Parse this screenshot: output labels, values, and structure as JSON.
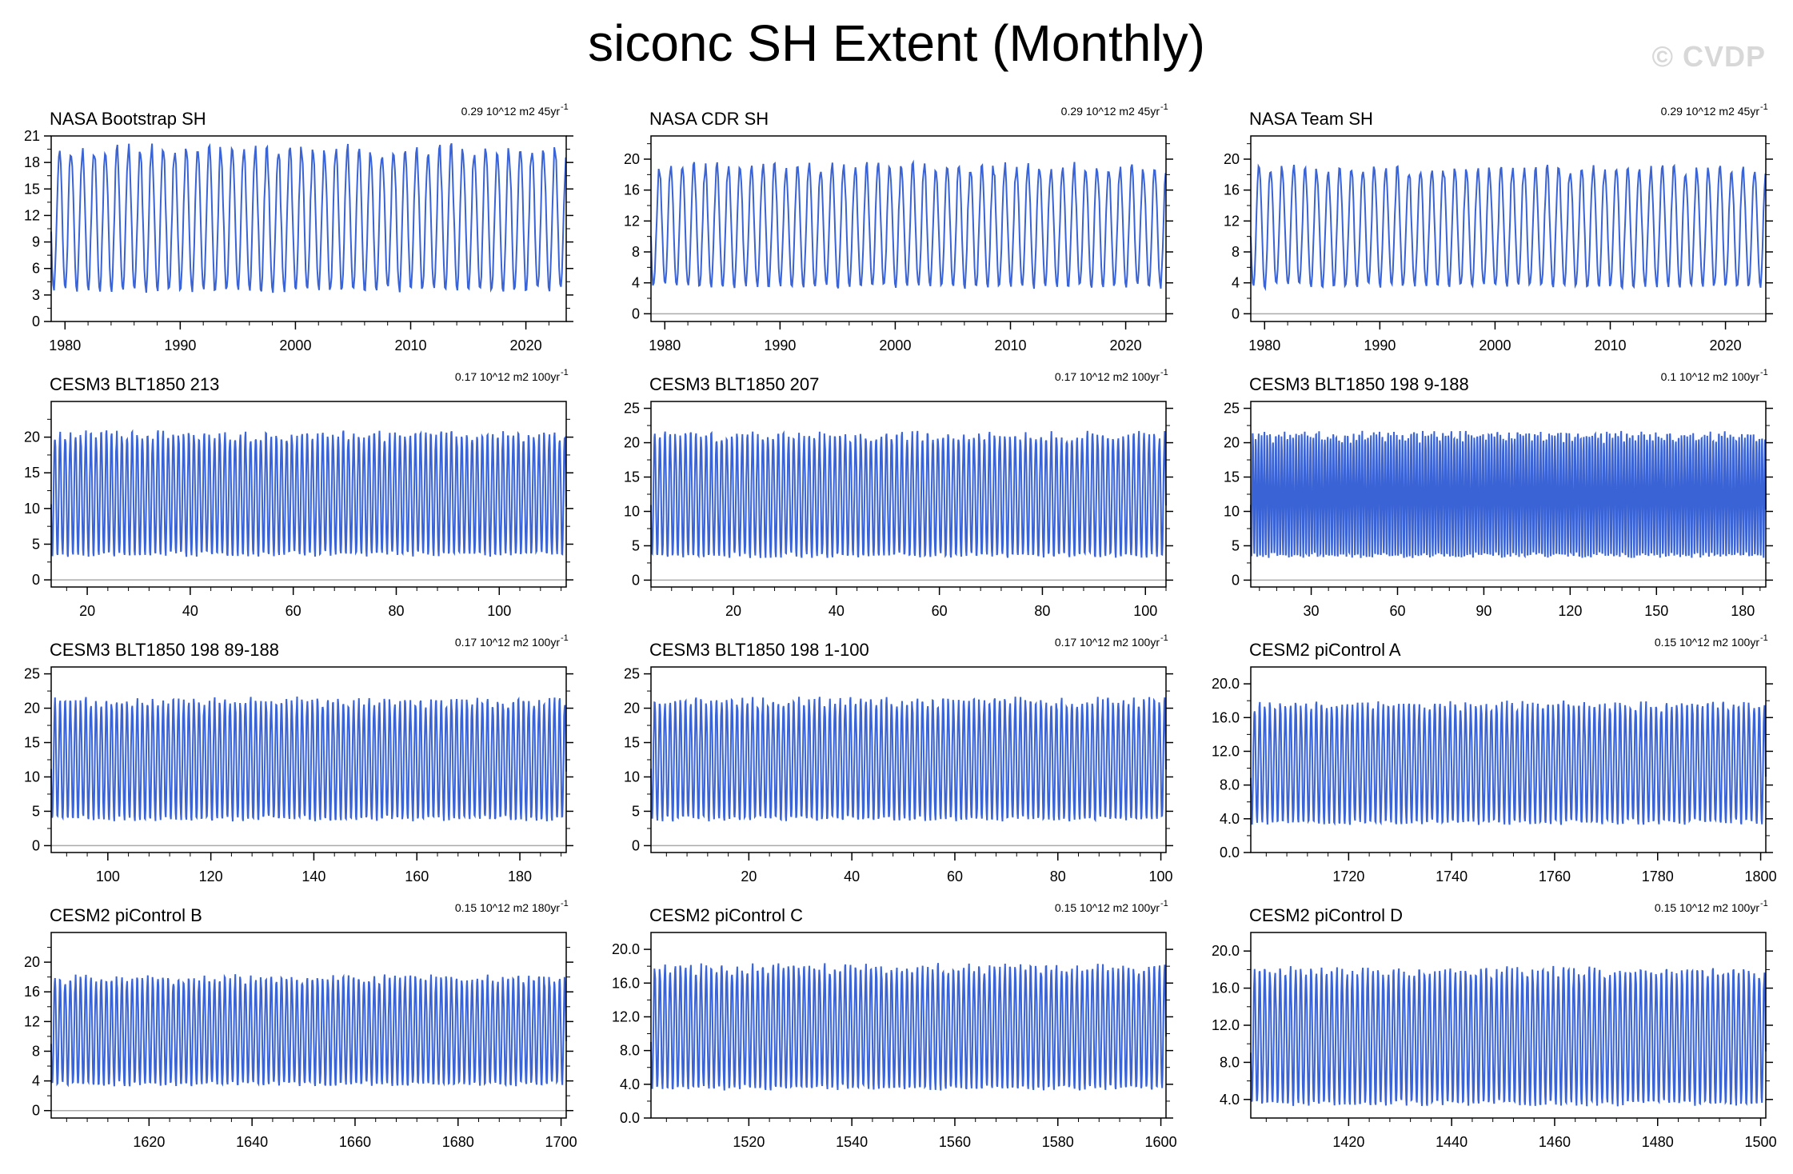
{
  "page": {
    "title": "siconc SH Extent (Monthly)",
    "watermark": "© CVDP"
  },
  "colors": {
    "series": "#3a63d6",
    "axis": "#000000",
    "zero_line": "#aaaaaa"
  },
  "chart_data": [
    {
      "type": "line",
      "title": "NASA Bootstrap SH",
      "stat": "0.29 10^12 m2 45yr",
      "stat_sup": "-1",
      "x_range": [
        1978.8,
        2023.5
      ],
      "xticks": [
        1980,
        1990,
        2000,
        2010,
        2020
      ],
      "ylim": [
        0,
        21
      ],
      "yticks": [
        0,
        3,
        6,
        9,
        12,
        15,
        18,
        21
      ],
      "ytick_labels": [
        "0",
        "3",
        "6",
        "9",
        "12",
        "15",
        "18",
        "21"
      ],
      "series": [
        {
          "name": "sea ice extent",
          "min_value": 3.5,
          "max_value": 19.5
        }
      ]
    },
    {
      "type": "line",
      "title": "NASA CDR SH",
      "stat": "0.29 10^12 m2 45yr",
      "stat_sup": "-1",
      "x_range": [
        1978.8,
        2023.5
      ],
      "xticks": [
        1980,
        1990,
        2000,
        2010,
        2020
      ],
      "ylim": [
        -1,
        23
      ],
      "yticks": [
        0,
        4,
        8,
        12,
        16,
        20
      ],
      "ytick_labels": [
        "0",
        "4",
        "8",
        "12",
        "16",
        "20"
      ],
      "series": [
        {
          "name": "sea ice extent",
          "min_value": 3.5,
          "max_value": 19
        }
      ]
    },
    {
      "type": "line",
      "title": "NASA Team SH",
      "stat": "0.29 10^12 m2 45yr",
      "stat_sup": "-1",
      "x_range": [
        1978.8,
        2023.5
      ],
      "xticks": [
        1980,
        1990,
        2000,
        2010,
        2020
      ],
      "ylim": [
        -1,
        23
      ],
      "yticks": [
        0,
        4,
        8,
        12,
        16,
        20
      ],
      "ytick_labels": [
        "0",
        "4",
        "8",
        "12",
        "16",
        "20"
      ],
      "series": [
        {
          "name": "sea ice extent",
          "min_value": 3.5,
          "max_value": 18.8
        }
      ]
    },
    {
      "type": "line",
      "title": "CESM3 BLT1850 213",
      "stat": "0.17 10^12 m2 100yr",
      "stat_sup": "-1",
      "x_range": [
        13,
        113
      ],
      "xticks": [
        20,
        40,
        60,
        80,
        100
      ],
      "ylim": [
        -1,
        25
      ],
      "yticks": [
        0,
        5,
        10,
        15,
        20
      ],
      "ytick_labels": [
        "0",
        "5",
        "10",
        "15",
        "20"
      ],
      "series": [
        {
          "name": "sea ice extent",
          "min_value": 3.5,
          "max_value": 20.3
        }
      ]
    },
    {
      "type": "line",
      "title": "CESM3 BLT1850 207",
      "stat": "0.17 10^12 m2 100yr",
      "stat_sup": "-1",
      "x_range": [
        4,
        104
      ],
      "xticks": [
        20,
        40,
        60,
        80,
        100
      ],
      "ylim": [
        -1,
        26
      ],
      "yticks": [
        0,
        5,
        10,
        15,
        20,
        25
      ],
      "ytick_labels": [
        "0",
        "5",
        "10",
        "15",
        "20",
        "25"
      ],
      "series": [
        {
          "name": "sea ice extent",
          "min_value": 3.5,
          "max_value": 21
        }
      ]
    },
    {
      "type": "line",
      "title": "CESM3 BLT1850 198 9-188",
      "stat": "0.1 10^12 m2 100yr",
      "stat_sup": "-1",
      "x_range": [
        9,
        188
      ],
      "xticks": [
        30,
        60,
        90,
        120,
        150,
        180
      ],
      "ylim": [
        -1,
        26
      ],
      "yticks": [
        0,
        5,
        10,
        15,
        20,
        25
      ],
      "ytick_labels": [
        "0",
        "5",
        "10",
        "15",
        "20",
        "25"
      ],
      "series": [
        {
          "name": "sea ice extent",
          "min_value": 3.5,
          "max_value": 21
        }
      ]
    },
    {
      "type": "line",
      "title": "CESM3 BLT1850 198 89-188",
      "stat": "0.17 10^12 m2 100yr",
      "stat_sup": "-1",
      "x_range": [
        89,
        189
      ],
      "xticks": [
        100,
        120,
        140,
        160,
        180
      ],
      "ylim": [
        -1,
        26
      ],
      "yticks": [
        0,
        5,
        10,
        15,
        20,
        25
      ],
      "ytick_labels": [
        "0",
        "5",
        "10",
        "15",
        "20",
        "25"
      ],
      "series": [
        {
          "name": "sea ice extent",
          "min_value": 3.8,
          "max_value": 21
        }
      ]
    },
    {
      "type": "line",
      "title": "CESM3 BLT1850 198 1-100",
      "stat": "0.17 10^12 m2 100yr",
      "stat_sup": "-1",
      "x_range": [
        1,
        101
      ],
      "xticks": [
        20,
        40,
        60,
        80,
        100
      ],
      "ylim": [
        -1,
        26
      ],
      "yticks": [
        0,
        5,
        10,
        15,
        20,
        25
      ],
      "ytick_labels": [
        "0",
        "5",
        "10",
        "15",
        "20",
        "25"
      ],
      "series": [
        {
          "name": "sea ice extent",
          "min_value": 3.8,
          "max_value": 21
        }
      ]
    },
    {
      "type": "line",
      "title": "CESM2 piControl A",
      "stat": "0.15 10^12 m2 100yr",
      "stat_sup": "-1",
      "x_range": [
        1701,
        1801
      ],
      "xticks": [
        1720,
        1740,
        1760,
        1780,
        1800
      ],
      "ylim": [
        0,
        22
      ],
      "yticks": [
        0,
        4,
        8,
        12,
        16,
        20
      ],
      "ytick_labels": [
        "0.0",
        "4.0",
        "8.0",
        "12.0",
        "16.0",
        "20.0"
      ],
      "series": [
        {
          "name": "sea ice extent",
          "min_value": 3.5,
          "max_value": 17.5
        }
      ]
    },
    {
      "type": "line",
      "title": "CESM2 piControl B",
      "stat": "0.15 10^12 m2 180yr",
      "stat_sup": "-1",
      "x_range": [
        1601,
        1701
      ],
      "xticks": [
        1620,
        1640,
        1660,
        1680,
        1700
      ],
      "ylim": [
        -1,
        24
      ],
      "yticks": [
        0,
        4,
        8,
        12,
        16,
        20
      ],
      "ytick_labels": [
        "0",
        "4",
        "8",
        "12",
        "16",
        "20"
      ],
      "series": [
        {
          "name": "sea ice extent",
          "min_value": 3.5,
          "max_value": 17.8
        }
      ]
    },
    {
      "type": "line",
      "title": "CESM2 piControl C",
      "stat": "0.15 10^12 m2 100yr",
      "stat_sup": "-1",
      "x_range": [
        1501,
        1601
      ],
      "xticks": [
        1520,
        1540,
        1560,
        1580,
        1600
      ],
      "ylim": [
        0,
        22
      ],
      "yticks": [
        0,
        4,
        8,
        12,
        16,
        20
      ],
      "ytick_labels": [
        "0.0",
        "4.0",
        "8.0",
        "12.0",
        "16.0",
        "20.0"
      ],
      "series": [
        {
          "name": "sea ice extent",
          "min_value": 3.5,
          "max_value": 17.8
        }
      ]
    },
    {
      "type": "line",
      "title": "CESM2 piControl D",
      "stat": "0.15 10^12 m2 100yr",
      "stat_sup": "-1",
      "x_range": [
        1401,
        1501
      ],
      "xticks": [
        1420,
        1440,
        1460,
        1480,
        1500
      ],
      "ylim": [
        2,
        22
      ],
      "yticks": [
        4,
        8,
        12,
        16,
        20
      ],
      "ytick_labels": [
        "4.0",
        "8.0",
        "12.0",
        "16.0",
        "20.0"
      ],
      "series": [
        {
          "name": "sea ice extent",
          "min_value": 3.5,
          "max_value": 17.8
        }
      ]
    }
  ]
}
